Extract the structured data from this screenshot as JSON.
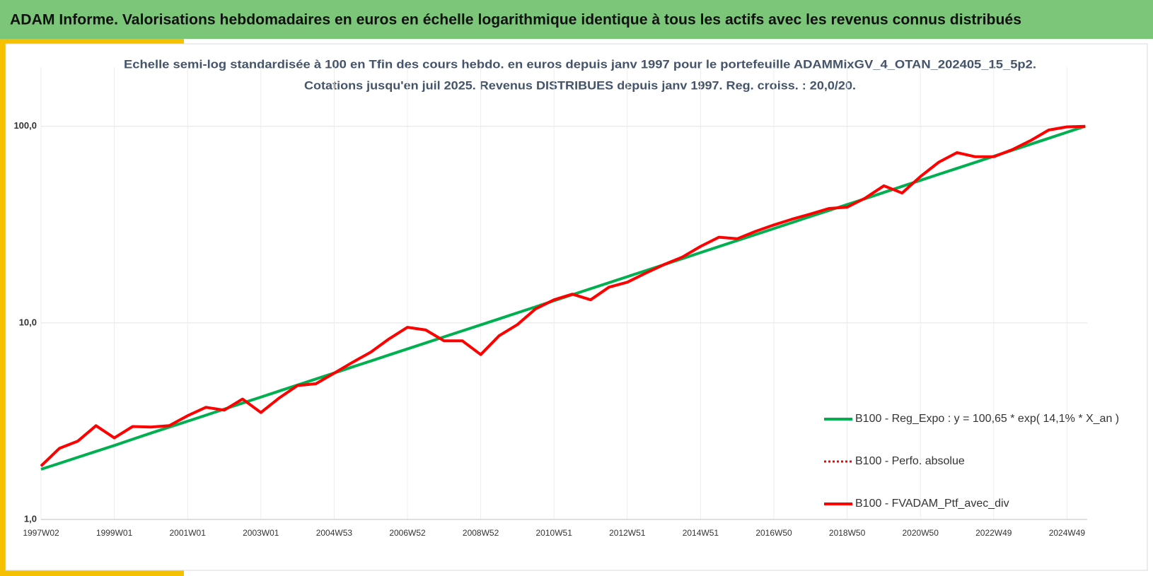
{
  "header": {
    "title": "ADAM Informe. Valorisations hebdomadaires en euros en échelle logarithmique identique à tous les actifs avec les revenus connus distribués"
  },
  "chart_data": {
    "type": "line",
    "title": "Echelle semi-log standardisée à 100 en Tfin des cours hebdo. en euros depuis janv 1997 pour le portefeuille ADAMMixGV_4_OTAN_202405_15_5p2.",
    "subtitle": "Cotations jusqu'en juil 2025. Revenus DISTRIBUES depuis janv 1997. Reg. croiss. : 20,0/20.",
    "categories": [
      "1997W02",
      null,
      null,
      null,
      "1999W01",
      null,
      null,
      null,
      "2001W01",
      null,
      null,
      null,
      "2003W01",
      null,
      null,
      null,
      "2004W53",
      null,
      null,
      null,
      "2006W52",
      null,
      null,
      null,
      "2008W52",
      null,
      null,
      null,
      "2010W51",
      null,
      null,
      null,
      "2012W51",
      null,
      null,
      null,
      "2014W51",
      null,
      null,
      null,
      "2016W50",
      null,
      null,
      null,
      "2018W50",
      null,
      null,
      null,
      "2020W50",
      null,
      null,
      null,
      "2022W49",
      null,
      null,
      null,
      "2024W49",
      null
    ],
    "series": [
      {
        "name": "B100 - Reg_Expo : y = 100,65 * exp( 14,1% *  X_an )",
        "color": "#00b050",
        "dash": "solid",
        "values": [
          1.8,
          1.93,
          2.07,
          2.22,
          2.38,
          2.56,
          2.75,
          2.95,
          3.16,
          3.39,
          3.64,
          3.91,
          4.19,
          4.5,
          4.83,
          5.18,
          5.56,
          5.97,
          6.4,
          6.87,
          7.37,
          7.91,
          8.49,
          9.11,
          9.77,
          10.48,
          11.25,
          12.07,
          12.96,
          13.91,
          14.92,
          16.01,
          17.18,
          18.43,
          19.78,
          21.22,
          22.78,
          24.44,
          26.23,
          28.14,
          30.2,
          32.4,
          34.8,
          37.3,
          40.0,
          42.9,
          46.1,
          49.5,
          53.1,
          57.0,
          61.1,
          65.6,
          70.4,
          75.5,
          81.0,
          86.9,
          93.3,
          100.1
        ]
      },
      {
        "name": "B100 - Perfo. absolue",
        "color": "#ff0000",
        "dash": "dotted",
        "values": [
          1.87,
          2.3,
          2.5,
          3.0,
          2.6,
          2.97,
          2.95,
          3.0,
          3.37,
          3.72,
          3.6,
          4.1,
          3.5,
          4.15,
          4.8,
          4.9,
          5.55,
          6.3,
          7.1,
          8.3,
          9.5,
          9.2,
          8.1,
          8.1,
          6.9,
          8.6,
          9.8,
          11.8,
          13.1,
          14.0,
          13.1,
          15.2,
          16.1,
          17.9,
          19.8,
          21.6,
          24.5,
          27.3,
          26.8,
          29.2,
          31.5,
          33.7,
          35.8,
          38.2,
          38.8,
          43.2,
          49.8,
          45.8,
          55.5,
          65.7,
          73.5,
          70,
          70,
          76,
          84.5,
          95.7,
          99.4,
          100
        ]
      },
      {
        "name": "B100 - FVADAM_Ptf_avec_div",
        "color": "#ff0000",
        "dash": "solid",
        "values": [
          1.87,
          2.3,
          2.5,
          3.0,
          2.6,
          2.97,
          2.95,
          3.0,
          3.37,
          3.72,
          3.6,
          4.1,
          3.5,
          4.15,
          4.8,
          4.9,
          5.55,
          6.3,
          7.1,
          8.3,
          9.5,
          9.2,
          8.1,
          8.1,
          6.9,
          8.6,
          9.8,
          11.8,
          13.1,
          14.0,
          13.1,
          15.2,
          16.1,
          17.9,
          19.8,
          21.6,
          24.5,
          27.3,
          26.8,
          29.2,
          31.5,
          33.7,
          35.8,
          38.2,
          38.8,
          43.2,
          49.8,
          45.8,
          55.5,
          65.7,
          73.5,
          70,
          70,
          76,
          84.5,
          95.7,
          99.4,
          100
        ]
      }
    ],
    "ylim": [
      1,
      200
    ],
    "log_y": true,
    "yticks": [
      {
        "value": 1,
        "label": "1,0"
      },
      {
        "value": 10,
        "label": "10,0"
      },
      {
        "value": 100,
        "label": "100,0"
      }
    ],
    "grid": true,
    "legend": "right"
  }
}
